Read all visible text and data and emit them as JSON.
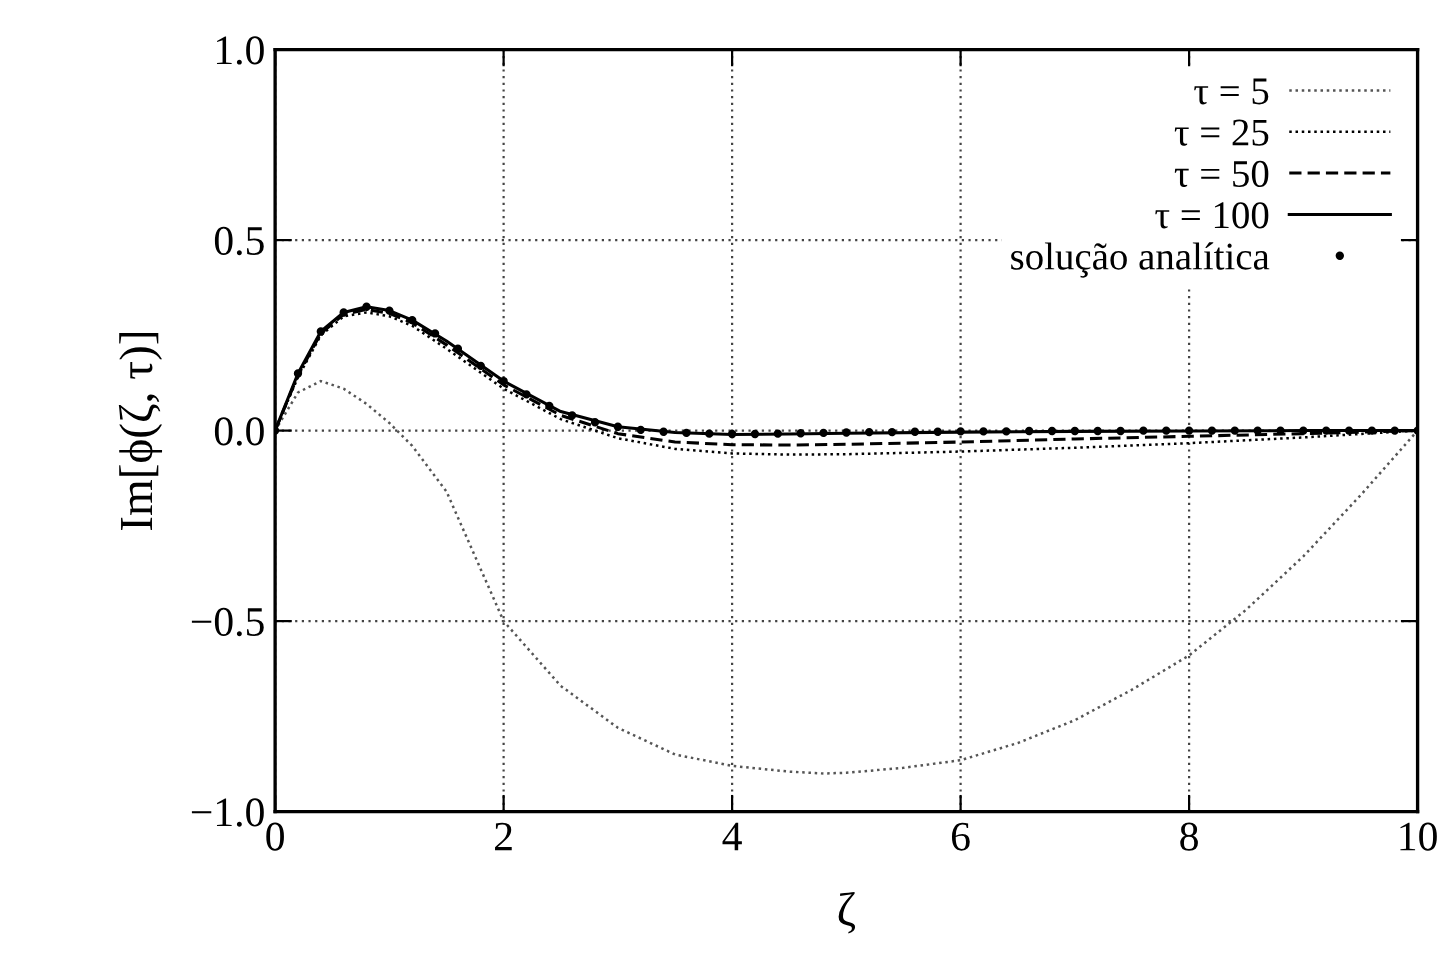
{
  "chart_data": {
    "type": "line",
    "xlabel": "ζ",
    "ylabel": "Im[ϕ(ζ, τ)]",
    "xlim": [
      0,
      10
    ],
    "ylim": [
      -1.0,
      1.0
    ],
    "xticks": [
      0,
      2,
      4,
      6,
      8,
      10
    ],
    "yticks": [
      {
        "value": -1.0,
        "label": "−1.0"
      },
      {
        "value": -0.5,
        "label": "−0.5"
      },
      {
        "value": 0.0,
        "label": "0.0"
      },
      {
        "value": 0.5,
        "label": "0.5"
      },
      {
        "value": 1.0,
        "label": "1.0"
      }
    ],
    "grid": true,
    "legend": "top right",
    "series": [
      {
        "name": "τ = 5",
        "color": "#555555",
        "line_style": "dotted",
        "x": [
          0,
          0.2,
          0.4,
          0.6,
          0.8,
          1.0,
          1.2,
          1.5,
          2.0,
          2.5,
          3.0,
          3.5,
          4.0,
          4.5,
          4.8,
          5.0,
          5.5,
          6.0,
          6.5,
          7.0,
          7.5,
          8.0,
          8.5,
          9.0,
          9.5,
          10.0
        ],
        "values": [
          0,
          0.1,
          0.13,
          0.11,
          0.07,
          0.02,
          -0.04,
          -0.16,
          -0.5,
          -0.67,
          -0.78,
          -0.85,
          -0.88,
          -0.895,
          -0.9,
          -0.898,
          -0.885,
          -0.865,
          -0.82,
          -0.76,
          -0.68,
          -0.59,
          -0.47,
          -0.33,
          -0.17,
          0
        ]
      },
      {
        "name": "τ = 25",
        "color": "#000000",
        "line_style": "dotted",
        "x": [
          0,
          0.2,
          0.4,
          0.6,
          0.8,
          1.0,
          1.2,
          1.5,
          2.0,
          2.5,
          3.0,
          3.5,
          4.0,
          4.5,
          5.0,
          6.0,
          7.0,
          8.0,
          9.0,
          10.0
        ],
        "values": [
          0,
          0.14,
          0.25,
          0.3,
          0.31,
          0.3,
          0.275,
          0.215,
          0.11,
          0.03,
          -0.02,
          -0.048,
          -0.06,
          -0.063,
          -0.062,
          -0.055,
          -0.045,
          -0.033,
          -0.018,
          0
        ]
      },
      {
        "name": "τ = 50",
        "color": "#000000",
        "line_style": "dashed",
        "x": [
          0,
          0.2,
          0.4,
          0.6,
          0.8,
          1.0,
          1.2,
          1.5,
          2.0,
          2.5,
          3.0,
          3.5,
          4.0,
          4.5,
          5.0,
          6.0,
          7.0,
          8.0,
          9.0,
          10.0
        ],
        "values": [
          0,
          0.145,
          0.255,
          0.305,
          0.318,
          0.308,
          0.283,
          0.225,
          0.12,
          0.04,
          -0.008,
          -0.03,
          -0.037,
          -0.038,
          -0.036,
          -0.03,
          -0.022,
          -0.015,
          -0.008,
          0
        ]
      },
      {
        "name": "τ = 100",
        "color": "#000000",
        "line_style": "solid",
        "x": [
          0,
          0.2,
          0.4,
          0.6,
          0.8,
          1.0,
          1.2,
          1.5,
          2.0,
          2.5,
          3.0,
          3.5,
          4.0,
          4.5,
          5.0,
          6.0,
          7.0,
          8.0,
          9.0,
          10.0
        ],
        "values": [
          0,
          0.15,
          0.26,
          0.31,
          0.325,
          0.315,
          0.29,
          0.235,
          0.13,
          0.05,
          0.01,
          -0.005,
          -0.01,
          -0.009,
          -0.007,
          -0.004,
          -0.002,
          -0.001,
          0,
          0
        ]
      },
      {
        "name": "solução analítica",
        "type": "scatter",
        "marker": "circle",
        "color": "#000000",
        "x": [
          0,
          0.2,
          0.4,
          0.6,
          0.8,
          1.0,
          1.2,
          1.4,
          1.6,
          1.8,
          2.0,
          2.2,
          2.4,
          2.6,
          2.8,
          3.0,
          3.2,
          3.4,
          3.6,
          3.8,
          4.0,
          4.2,
          4.4,
          4.6,
          4.8,
          5.0,
          5.2,
          5.4,
          5.6,
          5.8,
          6.0,
          6.2,
          6.4,
          6.6,
          6.8,
          7.0,
          7.2,
          7.4,
          7.6,
          7.8,
          8.0,
          8.2,
          8.4,
          8.6,
          8.8,
          9.0,
          9.2,
          9.4,
          9.6,
          9.8,
          10.0
        ],
        "values": [
          0,
          0.15,
          0.26,
          0.31,
          0.325,
          0.315,
          0.29,
          0.255,
          0.215,
          0.17,
          0.13,
          0.095,
          0.065,
          0.04,
          0.022,
          0.01,
          0.002,
          -0.003,
          -0.006,
          -0.008,
          -0.009,
          -0.009,
          -0.008,
          -0.007,
          -0.006,
          -0.005,
          -0.004,
          -0.004,
          -0.003,
          -0.003,
          -0.002,
          -0.002,
          -0.002,
          -0.001,
          -0.001,
          -0.001,
          -0.001,
          -0.001,
          0,
          0,
          0,
          0,
          0,
          0,
          0,
          0,
          0,
          0,
          0,
          0,
          0
        ]
      }
    ]
  }
}
